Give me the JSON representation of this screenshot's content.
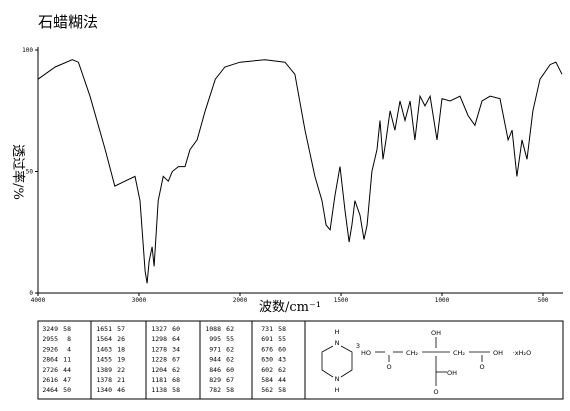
{
  "chart_data": {
    "type": "line",
    "title": "石蜡糊法",
    "xlabel": "波数/cm⁻¹",
    "ylabel": "透过率/%",
    "x": [
      4000,
      3830,
      3660,
      3600,
      3485,
      3335,
      3240,
      3140,
      3040,
      2990,
      2940,
      2920,
      2900,
      2870,
      2850,
      2810,
      2760,
      2710,
      2670,
      2610,
      2545,
      2495,
      2425,
      2345,
      2245,
      2150,
      2000,
      1876,
      1777,
      1728,
      1678,
      1629,
      1594,
      1574,
      1554,
      1530,
      1505,
      1480,
      1460,
      1446,
      1431,
      1406,
      1386,
      1371,
      1347,
      1322,
      1307,
      1292,
      1277,
      1257,
      1233,
      1208,
      1183,
      1158,
      1134,
      1109,
      1084,
      1059,
      1025,
      1000,
      960,
      911,
      871,
      837,
      802,
      762,
      713,
      673,
      653,
      629,
      604,
      579,
      550,
      515,
      465,
      436,
      406
    ],
    "values": [
      88,
      93,
      96,
      95,
      81,
      59,
      44,
      46,
      48,
      38,
      9,
      4,
      13,
      19,
      11,
      38,
      48,
      46,
      50,
      52,
      52,
      59,
      63,
      75,
      88,
      93,
      95,
      96,
      95,
      90,
      67,
      48,
      38,
      28,
      26,
      40,
      52,
      34,
      21,
      28,
      38,
      32,
      22,
      28,
      50,
      59,
      71,
      55,
      63,
      75,
      67,
      79,
      71,
      79,
      63,
      81,
      77,
      81,
      63,
      80,
      79,
      81,
      73,
      69,
      79,
      81,
      80,
      63,
      67,
      48,
      63,
      55,
      75,
      88,
      94,
      95,
      90
    ],
    "color": "#000000",
    "xlim": [
      4000,
      406
    ],
    "scale_break": 2000,
    "xticks": [
      4000,
      3000,
      2000,
      1500,
      1000,
      500
    ],
    "ylim": [
      0,
      100
    ],
    "yticks": [
      0,
      50,
      100
    ]
  },
  "peak_table": {
    "columns": [
      {
        "wavenumber": [
          3249,
          2955,
          2926,
          2864,
          2726,
          2616,
          2464
        ],
        "transmittance": [
          58,
          8,
          4,
          11,
          44,
          47,
          50
        ]
      },
      {
        "wavenumber": [
          1651,
          1564,
          1463,
          1455,
          1389,
          1378,
          1340
        ],
        "transmittance": [
          57,
          26,
          18,
          19,
          22,
          21,
          46
        ]
      },
      {
        "wavenumber": [
          1327,
          1298,
          1278,
          1228,
          1204,
          1181,
          1138
        ],
        "transmittance": [
          60,
          64,
          34,
          67,
          62,
          68,
          58
        ]
      },
      {
        "wavenumber": [
          1088,
          995,
          971,
          944,
          846,
          829,
          782
        ],
        "transmittance": [
          62,
          55,
          62,
          62,
          60,
          67,
          58
        ]
      },
      {
        "wavenumber": [
          731,
          691,
          676,
          630,
          602,
          584,
          562
        ],
        "transmittance": [
          58,
          55,
          60,
          43,
          62,
          44,
          58
        ]
      }
    ]
  },
  "structure": {
    "labels": [
      "H",
      "N",
      "N",
      "H",
      "3",
      "HO",
      "O",
      "CH₂",
      "OH",
      "CH₂",
      "OH",
      "O",
      "OH",
      "O",
      "·xH₂O"
    ]
  }
}
